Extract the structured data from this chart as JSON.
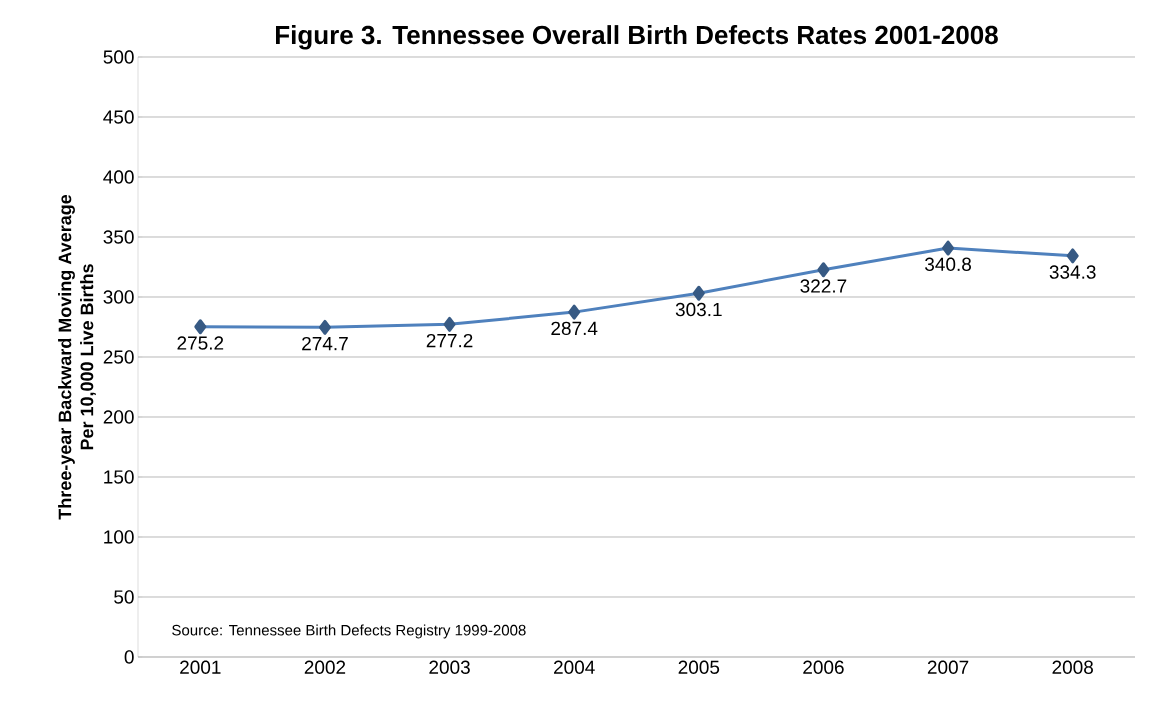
{
  "chart_data": {
    "type": "line",
    "title": "Figure 3. Tennessee Overall Birth Defects Rates 2001-2008",
    "ylabel": "Three-year Backward Moving Average\nPer 10,000 Live Births",
    "categories": [
      "2001",
      "2002",
      "2003",
      "2004",
      "2005",
      "2006",
      "2007",
      "2008"
    ],
    "series": [
      {
        "color": "#4f81bd",
        "values": [
          275.2,
          274.7,
          277.2,
          287.4,
          303.1,
          322.7,
          340.8,
          334.3
        ]
      }
    ],
    "ylim": [
      0,
      500
    ],
    "yticks": [
      0,
      50,
      100,
      150,
      200,
      250,
      300,
      350,
      400,
      450,
      500
    ],
    "grid": "y",
    "marker": "diamond",
    "line_style": "solid",
    "data_labels": true,
    "annotations": [
      "Source: Tennessee Birth Defects Registry 1999-2008"
    ]
  }
}
